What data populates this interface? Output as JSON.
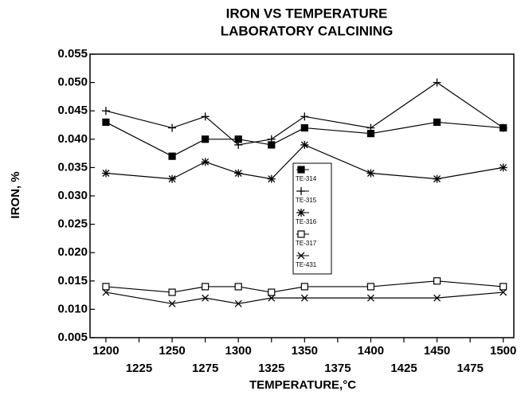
{
  "chart_data": {
    "type": "line",
    "title": "IRON VS TEMPERATURE",
    "subtitle": "LABORATORY CALCINING",
    "xlabel": "TEMPERATURE,°C",
    "ylabel": "IRON, %",
    "x": [
      1200,
      1250,
      1275,
      1300,
      1325,
      1350,
      1400,
      1450,
      1500
    ],
    "xlim": [
      1188,
      1508
    ],
    "xticks": [
      1200,
      1225,
      1250,
      1275,
      1300,
      1325,
      1350,
      1375,
      1400,
      1425,
      1450,
      1475,
      1500
    ],
    "ylim": [
      0.005,
      0.055
    ],
    "yticks": [
      0.005,
      {
        "value": 0.01,
        "label": "0.010"
      },
      0.015,
      {
        "value": 0.02,
        "label": "0.020"
      },
      0.025,
      {
        "value": 0.03,
        "label": "0.030"
      },
      0.035,
      {
        "value": 0.04,
        "label": "0.040"
      },
      0.045,
      {
        "value": 0.05,
        "label": "0.050"
      },
      0.055
    ],
    "legend": "center",
    "series": [
      {
        "name": "TE-314",
        "color": "#000000",
        "marker": "square-filled",
        "values": [
          0.043,
          0.037,
          0.04,
          0.04,
          0.039,
          0.042,
          0.041,
          0.043,
          0.042
        ]
      },
      {
        "name": "TE-315",
        "color": "#000000",
        "marker": "plus",
        "values": [
          0.045,
          0.042,
          0.044,
          0.039,
          0.04,
          0.044,
          0.042,
          0.05,
          0.042
        ]
      },
      {
        "name": "TE-316",
        "color": "#000000",
        "marker": "asterisk",
        "values": [
          0.034,
          0.033,
          0.036,
          0.034,
          0.033,
          0.039,
          0.034,
          0.033,
          0.035
        ]
      },
      {
        "name": "TE-317",
        "color": "#000000",
        "marker": "square-open",
        "values": [
          0.014,
          0.013,
          0.014,
          0.014,
          0.013,
          0.014,
          0.014,
          0.015,
          0.014
        ]
      },
      {
        "name": "TE-431",
        "color": "#000000",
        "marker": "x",
        "values": [
          0.013,
          0.011,
          0.012,
          0.011,
          0.012,
          0.012,
          0.012,
          0.012,
          0.013
        ]
      }
    ]
  }
}
